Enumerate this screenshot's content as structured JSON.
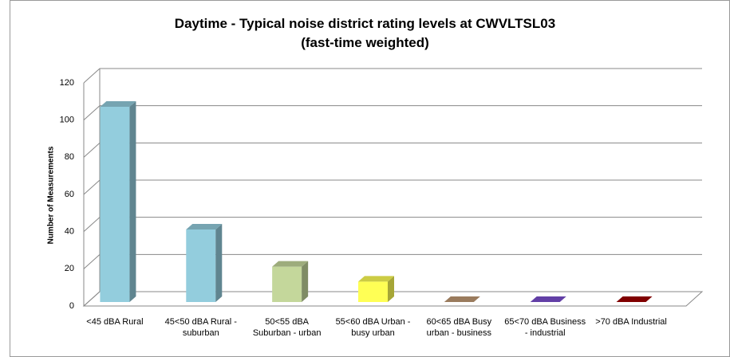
{
  "chart_data": {
    "type": "bar3d",
    "title": "Daytime - Typical noise district rating levels at CWVLTSL03",
    "subtitle": "(fast-time weighted)",
    "y_label": "Number of Measurements",
    "categories": [
      "<45 dBA Rural",
      "45<50 dBA Rural - suburban",
      "50<55 dBA Suburban - urban",
      "55<60 dBA Urban - busy urban",
      "60<65 dBA Busy urban - business",
      "65<70 dBA Business - industrial",
      ">70 dBA Industrial"
    ],
    "values": [
      105,
      39,
      19,
      11,
      0,
      0,
      0
    ],
    "colors": [
      "#93cddd",
      "#93cddd",
      "#c4d79b",
      "#ffff55",
      "#c09a74",
      "#7a4fd0",
      "#a00000"
    ],
    "ylim": [
      0,
      120
    ],
    "yticks": [
      0,
      20,
      40,
      60,
      80,
      100,
      120
    ],
    "grid": true
  }
}
